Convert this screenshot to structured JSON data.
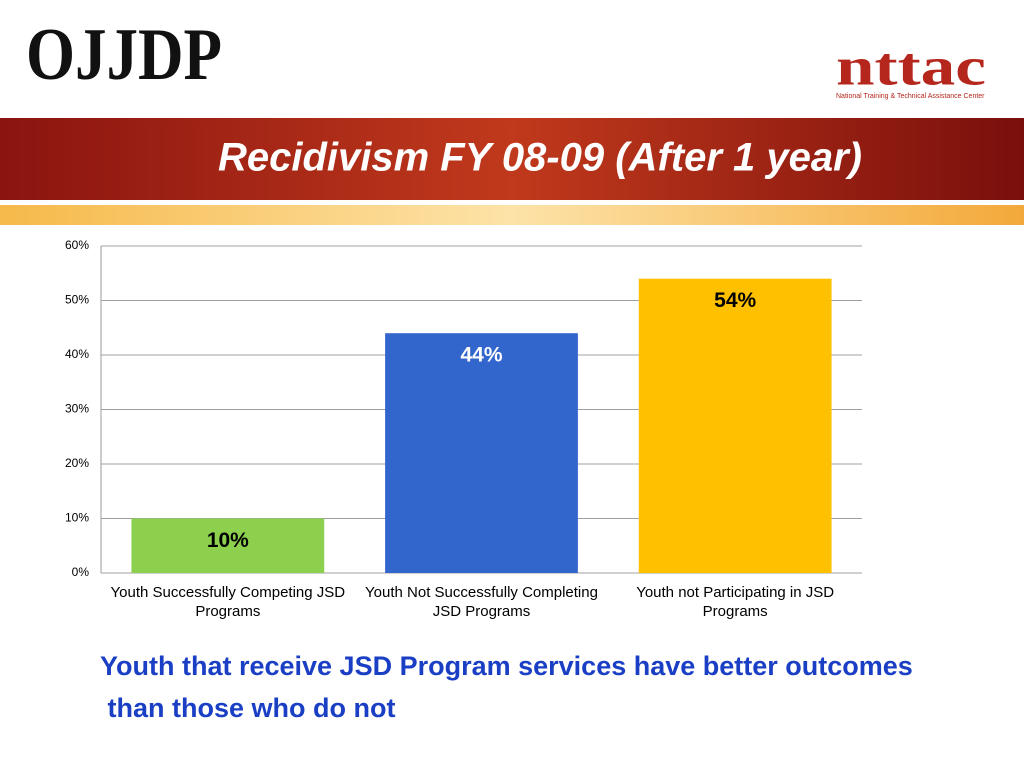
{
  "slide": {
    "logo_left": "OJJDP",
    "logo_right": "nttac",
    "logo_right_caption": "National Training & Technical Assistance Center",
    "takeaway": "Youth that receive JSD Program services have better outcomes than those who do not"
  },
  "chart_data": {
    "type": "bar",
    "title": "Recidivism FY 08-09 (After 1 year)",
    "categories": [
      "Youth Successfully Competing JSD Programs",
      "Youth Not Successfully Completing JSD Programs",
      "Youth not Participating in JSD Programs"
    ],
    "values": [
      10,
      44,
      54
    ],
    "value_labels": [
      "10%",
      "44%",
      "54%"
    ],
    "colors": [
      "#8cd04e",
      "#3366cc",
      "#ffc000"
    ],
    "value_label_colors": [
      "#000000",
      "#ffffff",
      "#000000"
    ],
    "ylim": [
      0,
      60
    ],
    "yticks": [
      {
        "value": 0,
        "label": "0%"
      },
      {
        "value": 10,
        "label": "10%"
      },
      {
        "value": 20,
        "label": "20%"
      },
      {
        "value": 30,
        "label": "30%"
      },
      {
        "value": 40,
        "label": "40%"
      },
      {
        "value": 50,
        "label": "50%"
      },
      {
        "value": 60,
        "label": "60%"
      }
    ],
    "grid": true
  }
}
